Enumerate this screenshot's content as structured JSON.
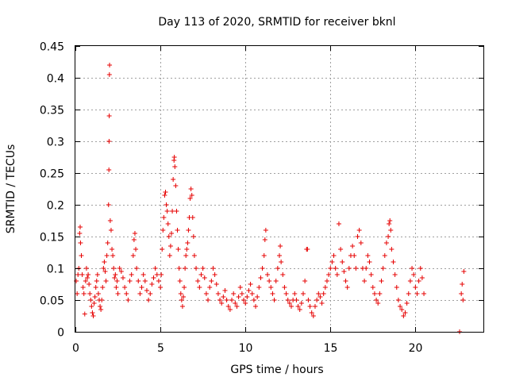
{
  "chart_data": {
    "type": "scatter",
    "title": "Day 113 of 2020, SRMTID for receiver bknl",
    "xlabel": "GPS time / hours",
    "ylabel": "SRMTID / TECUs",
    "xlim": [
      0,
      24
    ],
    "ylim": [
      0,
      0.45
    ],
    "x_ticks": [
      0,
      5,
      10,
      15,
      20
    ],
    "y_ticks": [
      0,
      0.05,
      0.1,
      0.15,
      0.2,
      0.25,
      0.3,
      0.35,
      0.4,
      0.45
    ],
    "x_tick_labels": [
      "0",
      "5",
      "10",
      "15",
      "20"
    ],
    "y_tick_labels": [
      "0",
      "0.05",
      "0.1",
      "0.15",
      "0.2",
      "0.25",
      "0.3",
      "0.35",
      "0.4",
      "0.45"
    ],
    "grid": true,
    "marker": "+",
    "color": "#e60000",
    "series": [
      {
        "name": "SRMTID",
        "points": [
          [
            0.05,
            0.08
          ],
          [
            0.1,
            0.06
          ],
          [
            0.15,
            0.09
          ],
          [
            0.2,
            0.1
          ],
          [
            0.25,
            0.155
          ],
          [
            0.28,
            0.165
          ],
          [
            0.3,
            0.14
          ],
          [
            0.35,
            0.12
          ],
          [
            0.4,
            0.09
          ],
          [
            0.45,
            0.07
          ],
          [
            0.5,
            0.06
          ],
          [
            0.55,
            0.028
          ],
          [
            0.6,
            0.08
          ],
          [
            0.65,
            0.1
          ],
          [
            0.7,
            0.085
          ],
          [
            0.75,
            0.09
          ],
          [
            0.8,
            0.075
          ],
          [
            0.85,
            0.06
          ],
          [
            0.9,
            0.05
          ],
          [
            0.95,
            0.04
          ],
          [
            1.0,
            0.03
          ],
          [
            1.05,
            0.025
          ],
          [
            1.1,
            0.045
          ],
          [
            1.15,
            0.055
          ],
          [
            1.2,
            0.07
          ],
          [
            1.25,
            0.08
          ],
          [
            1.3,
            0.09
          ],
          [
            1.35,
            0.06
          ],
          [
            1.4,
            0.05
          ],
          [
            1.45,
            0.04
          ],
          [
            1.5,
            0.035
          ],
          [
            1.55,
            0.05
          ],
          [
            1.6,
            0.07
          ],
          [
            1.65,
            0.1
          ],
          [
            1.7,
            0.11
          ],
          [
            1.75,
            0.095
          ],
          [
            1.8,
            0.08
          ],
          [
            1.85,
            0.12
          ],
          [
            1.9,
            0.14
          ],
          [
            1.95,
            0.2
          ],
          [
            1.97,
            0.255
          ],
          [
            1.98,
            0.3
          ],
          [
            1.99,
            0.34
          ],
          [
            2.0,
            0.405
          ],
          [
            2.01,
            0.42
          ],
          [
            2.05,
            0.175
          ],
          [
            2.1,
            0.16
          ],
          [
            2.15,
            0.13
          ],
          [
            2.2,
            0.12
          ],
          [
            2.25,
            0.1
          ],
          [
            2.3,
            0.085
          ],
          [
            2.35,
            0.09
          ],
          [
            2.4,
            0.07
          ],
          [
            2.45,
            0.08
          ],
          [
            2.5,
            0.06
          ],
          [
            2.6,
            0.1
          ],
          [
            2.7,
            0.095
          ],
          [
            2.8,
            0.085
          ],
          [
            2.9,
            0.07
          ],
          [
            3.0,
            0.06
          ],
          [
            3.1,
            0.05
          ],
          [
            3.2,
            0.08
          ],
          [
            3.3,
            0.09
          ],
          [
            3.4,
            0.12
          ],
          [
            3.45,
            0.145
          ],
          [
            3.5,
            0.155
          ],
          [
            3.55,
            0.13
          ],
          [
            3.6,
            0.1
          ],
          [
            3.7,
            0.08
          ],
          [
            3.8,
            0.06
          ],
          [
            3.9,
            0.07
          ],
          [
            4.0,
            0.09
          ],
          [
            4.1,
            0.08
          ],
          [
            4.2,
            0.065
          ],
          [
            4.3,
            0.05
          ],
          [
            4.4,
            0.06
          ],
          [
            4.5,
            0.075
          ],
          [
            4.6,
            0.085
          ],
          [
            4.7,
            0.1
          ],
          [
            4.8,
            0.09
          ],
          [
            4.9,
            0.08
          ],
          [
            5.0,
            0.07
          ],
          [
            5.05,
            0.09
          ],
          [
            5.1,
            0.13
          ],
          [
            5.15,
            0.16
          ],
          [
            5.2,
            0.18
          ],
          [
            5.25,
            0.215
          ],
          [
            5.3,
            0.22
          ],
          [
            5.35,
            0.2
          ],
          [
            5.4,
            0.19
          ],
          [
            5.45,
            0.17
          ],
          [
            5.5,
            0.15
          ],
          [
            5.55,
            0.12
          ],
          [
            5.6,
            0.135
          ],
          [
            5.65,
            0.155
          ],
          [
            5.7,
            0.19
          ],
          [
            5.75,
            0.24
          ],
          [
            5.8,
            0.27
          ],
          [
            5.82,
            0.275
          ],
          [
            5.85,
            0.26
          ],
          [
            5.9,
            0.23
          ],
          [
            5.95,
            0.19
          ],
          [
            6.0,
            0.16
          ],
          [
            6.05,
            0.13
          ],
          [
            6.1,
            0.1
          ],
          [
            6.15,
            0.08
          ],
          [
            6.2,
            0.06
          ],
          [
            6.25,
            0.05
          ],
          [
            6.3,
            0.04
          ],
          [
            6.35,
            0.055
          ],
          [
            6.4,
            0.07
          ],
          [
            6.45,
            0.1
          ],
          [
            6.5,
            0.12
          ],
          [
            6.55,
            0.13
          ],
          [
            6.6,
            0.14
          ],
          [
            6.65,
            0.16
          ],
          [
            6.7,
            0.18
          ],
          [
            6.75,
            0.21
          ],
          [
            6.8,
            0.225
          ],
          [
            6.85,
            0.215
          ],
          [
            6.9,
            0.18
          ],
          [
            6.95,
            0.15
          ],
          [
            7.0,
            0.12
          ],
          [
            7.1,
            0.1
          ],
          [
            7.2,
            0.08
          ],
          [
            7.3,
            0.07
          ],
          [
            7.4,
            0.09
          ],
          [
            7.5,
            0.1
          ],
          [
            7.6,
            0.085
          ],
          [
            7.7,
            0.06
          ],
          [
            7.8,
            0.05
          ],
          [
            7.9,
            0.07
          ],
          [
            8.0,
            0.08
          ],
          [
            8.1,
            0.1
          ],
          [
            8.2,
            0.09
          ],
          [
            8.3,
            0.075
          ],
          [
            8.4,
            0.06
          ],
          [
            8.5,
            0.05
          ],
          [
            8.6,
            0.045
          ],
          [
            8.7,
            0.055
          ],
          [
            8.8,
            0.065
          ],
          [
            8.9,
            0.05
          ],
          [
            9.0,
            0.04
          ],
          [
            9.1,
            0.035
          ],
          [
            9.2,
            0.05
          ],
          [
            9.3,
            0.06
          ],
          [
            9.4,
            0.045
          ],
          [
            9.5,
            0.04
          ],
          [
            9.6,
            0.055
          ],
          [
            9.7,
            0.07
          ],
          [
            9.8,
            0.06
          ],
          [
            9.9,
            0.05
          ],
          [
            10.0,
            0.045
          ],
          [
            10.1,
            0.055
          ],
          [
            10.2,
            0.065
          ],
          [
            10.3,
            0.075
          ],
          [
            10.4,
            0.06
          ],
          [
            10.5,
            0.05
          ],
          [
            10.6,
            0.04
          ],
          [
            10.7,
            0.055
          ],
          [
            10.8,
            0.07
          ],
          [
            10.9,
            0.085
          ],
          [
            11.0,
            0.1
          ],
          [
            11.1,
            0.12
          ],
          [
            11.15,
            0.145
          ],
          [
            11.2,
            0.16
          ],
          [
            11.3,
            0.09
          ],
          [
            11.4,
            0.08
          ],
          [
            11.5,
            0.07
          ],
          [
            11.6,
            0.06
          ],
          [
            11.7,
            0.05
          ],
          [
            11.8,
            0.08
          ],
          [
            11.9,
            0.1
          ],
          [
            12.0,
            0.12
          ],
          [
            12.05,
            0.135
          ],
          [
            12.1,
            0.11
          ],
          [
            12.2,
            0.09
          ],
          [
            12.3,
            0.07
          ],
          [
            12.4,
            0.06
          ],
          [
            12.5,
            0.05
          ],
          [
            12.6,
            0.045
          ],
          [
            12.7,
            0.04
          ],
          [
            12.8,
            0.05
          ],
          [
            12.9,
            0.06
          ],
          [
            13.0,
            0.05
          ],
          [
            13.1,
            0.04
          ],
          [
            13.2,
            0.035
          ],
          [
            13.3,
            0.045
          ],
          [
            13.4,
            0.06
          ],
          [
            13.5,
            0.08
          ],
          [
            13.6,
            0.13
          ],
          [
            13.65,
            0.13
          ],
          [
            13.7,
            0.05
          ],
          [
            13.8,
            0.04
          ],
          [
            13.9,
            0.03
          ],
          [
            14.0,
            0.025
          ],
          [
            14.1,
            0.04
          ],
          [
            14.2,
            0.05
          ],
          [
            14.3,
            0.06
          ],
          [
            14.4,
            0.055
          ],
          [
            14.5,
            0.045
          ],
          [
            14.6,
            0.06
          ],
          [
            14.7,
            0.07
          ],
          [
            14.8,
            0.08
          ],
          [
            14.9,
            0.09
          ],
          [
            15.0,
            0.1
          ],
          [
            15.1,
            0.11
          ],
          [
            15.2,
            0.12
          ],
          [
            15.3,
            0.1
          ],
          [
            15.4,
            0.09
          ],
          [
            15.5,
            0.17
          ],
          [
            15.6,
            0.13
          ],
          [
            15.7,
            0.11
          ],
          [
            15.8,
            0.095
          ],
          [
            15.9,
            0.08
          ],
          [
            16.0,
            0.07
          ],
          [
            16.1,
            0.1
          ],
          [
            16.2,
            0.12
          ],
          [
            16.3,
            0.135
          ],
          [
            16.4,
            0.12
          ],
          [
            16.5,
            0.1
          ],
          [
            16.6,
            0.15
          ],
          [
            16.7,
            0.16
          ],
          [
            16.8,
            0.14
          ],
          [
            16.9,
            0.1
          ],
          [
            17.0,
            0.08
          ],
          [
            17.1,
            0.1
          ],
          [
            17.2,
            0.12
          ],
          [
            17.3,
            0.11
          ],
          [
            17.4,
            0.09
          ],
          [
            17.5,
            0.07
          ],
          [
            17.6,
            0.06
          ],
          [
            17.7,
            0.05
          ],
          [
            17.8,
            0.045
          ],
          [
            17.9,
            0.06
          ],
          [
            18.0,
            0.08
          ],
          [
            18.1,
            0.1
          ],
          [
            18.2,
            0.12
          ],
          [
            18.3,
            0.14
          ],
          [
            18.4,
            0.15
          ],
          [
            18.45,
            0.17
          ],
          [
            18.5,
            0.175
          ],
          [
            18.55,
            0.16
          ],
          [
            18.6,
            0.13
          ],
          [
            18.7,
            0.11
          ],
          [
            18.8,
            0.09
          ],
          [
            18.9,
            0.07
          ],
          [
            19.0,
            0.05
          ],
          [
            19.1,
            0.04
          ],
          [
            19.2,
            0.035
          ],
          [
            19.3,
            0.025
          ],
          [
            19.4,
            0.03
          ],
          [
            19.5,
            0.045
          ],
          [
            19.6,
            0.06
          ],
          [
            19.7,
            0.08
          ],
          [
            19.8,
            0.1
          ],
          [
            19.9,
            0.09
          ],
          [
            20.0,
            0.07
          ],
          [
            20.1,
            0.06
          ],
          [
            20.2,
            0.08
          ],
          [
            20.3,
            0.1
          ],
          [
            20.4,
            0.085
          ],
          [
            20.5,
            0.06
          ],
          [
            22.6,
            0.0
          ],
          [
            22.7,
            0.06
          ],
          [
            22.75,
            0.075
          ],
          [
            22.8,
            0.05
          ],
          [
            22.85,
            0.095
          ]
        ]
      }
    ]
  }
}
